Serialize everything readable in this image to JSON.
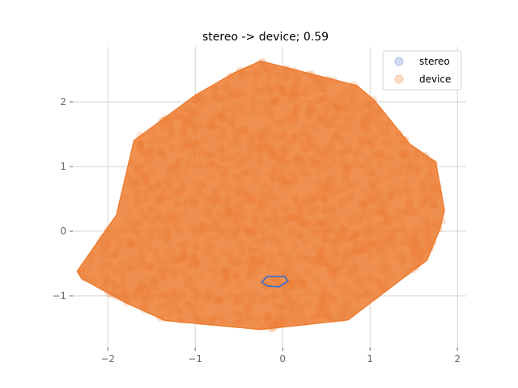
{
  "chart_data": {
    "type": "scatter",
    "title": "stereo -> device; 0.59",
    "xlabel": "",
    "ylabel": "",
    "xlim": [
      -2.4,
      2.1
    ],
    "ylim": [
      -1.8,
      2.85
    ],
    "xticks": [
      -2,
      -1,
      0,
      1,
      2
    ],
    "xtick_labels": [
      "−2",
      "−1",
      "0",
      "1",
      "2"
    ],
    "yticks": [
      -1,
      0,
      1,
      2
    ],
    "ytick_labels": [
      "−1",
      "0",
      "1",
      "2"
    ],
    "grid": true,
    "legend_position": "top-right",
    "series": [
      {
        "name": "stereo",
        "color": "#4472c4",
        "hull": [
          [
            -0.1,
            -0.7
          ],
          [
            0.02,
            -0.7
          ],
          [
            0.06,
            -0.77
          ],
          [
            -0.04,
            -0.86
          ],
          [
            -0.17,
            -0.85
          ],
          [
            -0.24,
            -0.79
          ],
          [
            -0.18,
            -0.7
          ]
        ]
      },
      {
        "name": "device",
        "color": "#ed7d31",
        "hull": [
          [
            -0.25,
            2.63
          ],
          [
            0.85,
            2.25
          ],
          [
            1.05,
            2.02
          ],
          [
            1.45,
            1.35
          ],
          [
            1.75,
            1.07
          ],
          [
            1.85,
            0.32
          ],
          [
            1.8,
            0.04
          ],
          [
            1.65,
            -0.45
          ],
          [
            1.45,
            -0.65
          ],
          [
            0.75,
            -1.37
          ],
          [
            -0.25,
            -1.52
          ],
          [
            -1.35,
            -1.38
          ],
          [
            -1.8,
            -1.1
          ],
          [
            -2.3,
            -0.73
          ],
          [
            -2.35,
            -0.62
          ],
          [
            -1.9,
            0.25
          ],
          [
            -1.7,
            1.4
          ],
          [
            -1.0,
            2.1
          ],
          [
            -0.55,
            2.45
          ]
        ]
      }
    ]
  }
}
